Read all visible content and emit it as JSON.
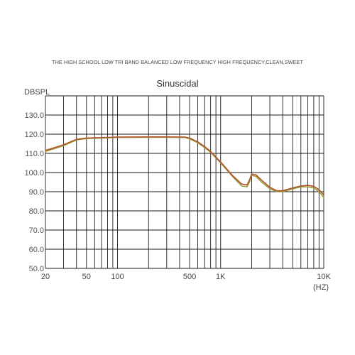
{
  "caption": "THE HIGH SCHOOL LOW TRI BAND BALANCED LOW FREQUENCY HIGH FREQUENCY,CLEAN,SWEET",
  "chart_data": {
    "type": "line",
    "title": "Sinuscidal",
    "ylabel": "DBSPL",
    "xunit": "(HZ)",
    "xscale": "log",
    "xlim": [
      20,
      10000
    ],
    "ylim": [
      50,
      140
    ],
    "grid": true,
    "yticks": [
      {
        "value": 130,
        "label": "130.0"
      },
      {
        "value": 120,
        "label": "120.0"
      },
      {
        "value": 110,
        "label": "110.0"
      },
      {
        "value": 100,
        "label": "100.0"
      },
      {
        "value": 90,
        "label": "90.0"
      },
      {
        "value": 80,
        "label": "80.0"
      },
      {
        "value": 70,
        "label": "70.0"
      },
      {
        "value": 60,
        "label": "60.0"
      },
      {
        "value": 50,
        "label": "50.0"
      }
    ],
    "xticks": [
      {
        "value": 20,
        "label": "20"
      },
      {
        "value": 50,
        "label": "50"
      },
      {
        "value": 100,
        "label": "100"
      },
      {
        "value": 500,
        "label": "500"
      },
      {
        "value": 1000,
        "label": "1K"
      },
      {
        "value": 10000,
        "label": "10K"
      }
    ],
    "x_grid": [
      20,
      30,
      40,
      50,
      60,
      70,
      80,
      90,
      100,
      200,
      300,
      400,
      500,
      600,
      700,
      800,
      900,
      1000,
      2000,
      3000,
      4000,
      5000,
      6000,
      7000,
      8000,
      9000,
      10000
    ],
    "series": [
      {
        "color": "#9c9c3a",
        "x": [
          20,
          30,
          40,
          50,
          70,
          100,
          200,
          300,
          450,
          500,
          600,
          700,
          800,
          1000,
          1300,
          1600,
          1800,
          1900,
          2000,
          2200,
          2500,
          3000,
          3500,
          4000,
          5000,
          6000,
          7000,
          8000,
          9000,
          10000
        ],
        "y": [
          111,
          114,
          117,
          117.7,
          118,
          118.3,
          118.4,
          118.4,
          118.3,
          117.6,
          115.5,
          113,
          110.5,
          105,
          98,
          93,
          92.5,
          95,
          98.5,
          98,
          95,
          91.5,
          90,
          90,
          91.5,
          92.5,
          92.5,
          92,
          90,
          87
        ]
      },
      {
        "color": "#b0542a",
        "x": [
          20,
          30,
          40,
          50,
          70,
          100,
          200,
          300,
          450,
          500,
          600,
          700,
          800,
          1000,
          1300,
          1600,
          1800,
          1900,
          2000,
          2200,
          2500,
          3000,
          3500,
          4000,
          5000,
          6000,
          7000,
          8000,
          9000,
          10000
        ],
        "y": [
          111.5,
          114.5,
          117.3,
          118,
          118.2,
          118.5,
          118.6,
          118.6,
          118.5,
          118,
          116,
          113.5,
          111,
          105.5,
          98.5,
          94,
          93.5,
          96,
          99.2,
          98.8,
          96,
          92.3,
          90.5,
          90.5,
          92,
          93,
          93.3,
          92.8,
          91,
          88.3
        ]
      }
    ]
  }
}
